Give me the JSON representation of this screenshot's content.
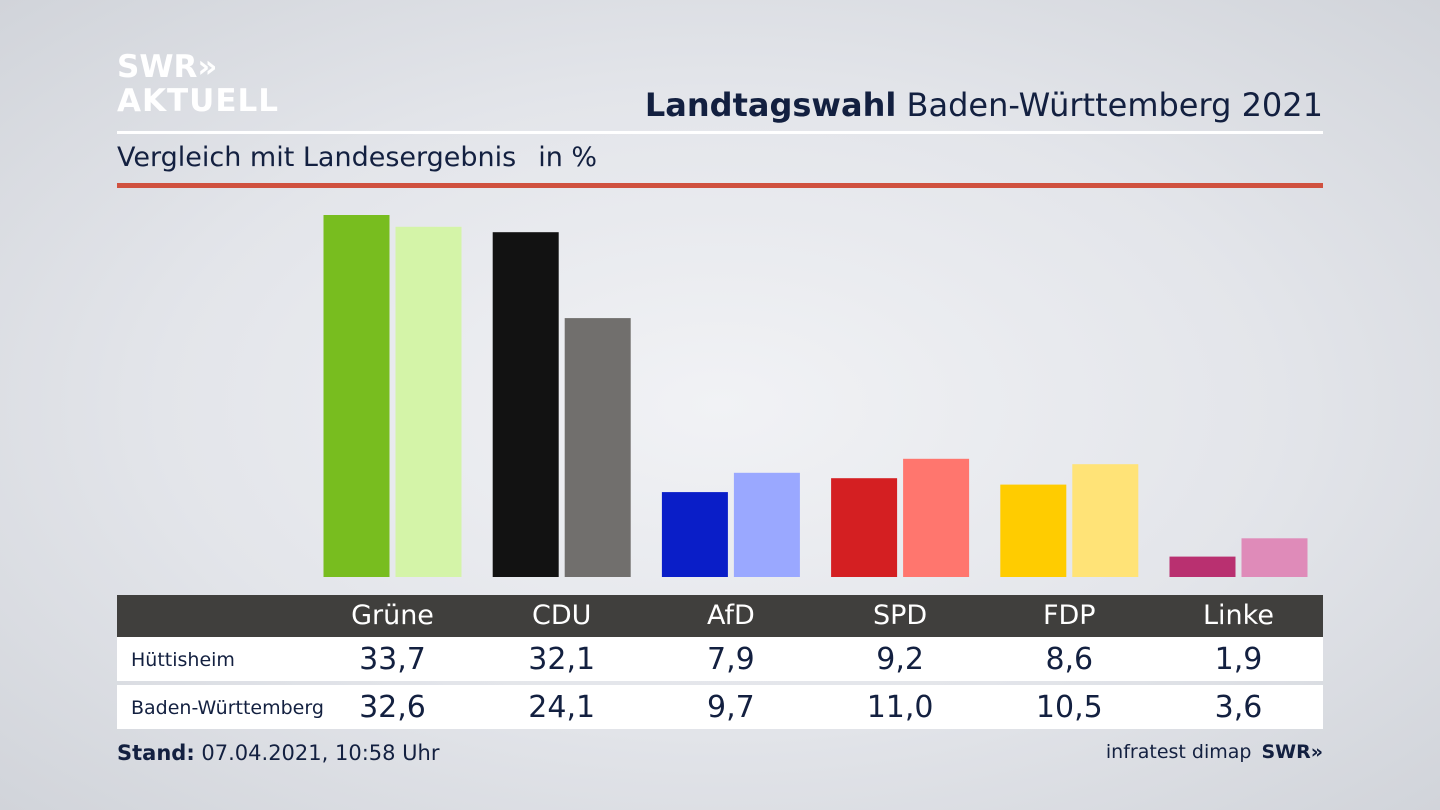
{
  "brand": {
    "line1": "SWR»",
    "line2": "AKTUELL"
  },
  "header": {
    "title_bold": "Landtagswahl",
    "title_rest": " Baden-Württemberg 2021"
  },
  "subheader": {
    "label": "Vergleich mit Landesergebnis",
    "unit": "in %"
  },
  "colors": {
    "accent_rule": "#d0513f",
    "table_header_bg": "#403f3d"
  },
  "chart_data": {
    "type": "bar",
    "categories": [
      "Grüne",
      "CDU",
      "AfD",
      "SPD",
      "FDP",
      "Linke"
    ],
    "series": [
      {
        "name": "Hüttisheim",
        "values": [
          33.7,
          32.1,
          7.9,
          9.2,
          8.6,
          1.9
        ],
        "colors": [
          "#78bd1f",
          "#121212",
          "#0a1ec8",
          "#d41f22",
          "#ffcc00",
          "#b93070"
        ]
      },
      {
        "name": "Baden-Württemberg",
        "values": [
          32.6,
          24.1,
          9.7,
          11.0,
          10.5,
          3.6
        ],
        "colors": [
          "#d4f4a8",
          "#716f6d",
          "#9aa8ff",
          "#ff766e",
          "#ffe377",
          "#df8bb9"
        ]
      }
    ],
    "value_labels": {
      "Hüttisheim": [
        "33,7",
        "32,1",
        "7,9",
        "9,2",
        "8,6",
        "1,9"
      ],
      "Baden-Württemberg": [
        "32,6",
        "24,1",
        "9,7",
        "11,0",
        "10,5",
        "3,6"
      ]
    },
    "grid": false,
    "legend": "table-below"
  },
  "footer": {
    "stand_label": "Stand:",
    "stand_value": " 07.04.2021, 10:58 Uhr",
    "source": "infratest dimap",
    "brand": "SWR»"
  }
}
